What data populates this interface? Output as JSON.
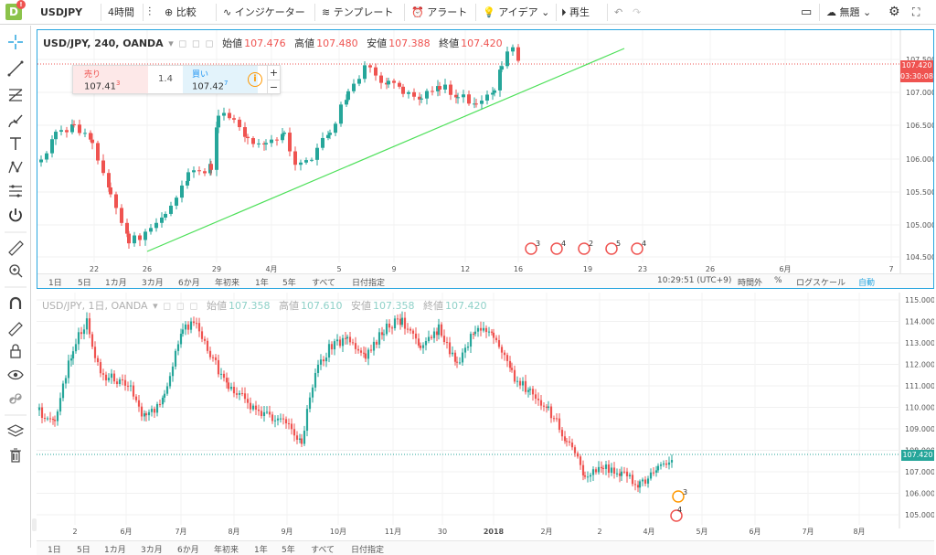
{
  "colors": {
    "up": "#26a69a",
    "down": "#ef5350",
    "accent": "#2aa6df",
    "trend": "#4ee05a",
    "price": "#ef5350",
    "price2": "#26a69a"
  },
  "topbar": {
    "logo_letter": "D",
    "logo_badge": "!",
    "symbol": "USDJPY",
    "interval": "4時間",
    "compare": "比較",
    "indicators": "インジケーター",
    "templates": "テンプレート",
    "alerts": "アラート",
    "ideas": "アイデア",
    "replay": "再生",
    "layout_name": "無題"
  },
  "sidebar": {
    "icons": [
      "crosshair-icon",
      "trendline-icon",
      "fib-icon",
      "brush-icon",
      "text-icon",
      "pattern-icon",
      "forecast-icon",
      "power-icon",
      "ruler-icon",
      "zoom-in-icon",
      "magnet-icon",
      "lock-drawing-icon",
      "lock-icon",
      "eye-icon",
      "link-icon",
      "layers-icon",
      "trash-icon"
    ]
  },
  "pane1": {
    "title": "USD/JPY, 240, OANDA",
    "ohlc": {
      "open_label": "始値",
      "open": "107.476",
      "high_label": "高値",
      "high": "107.480",
      "low_label": "安値",
      "low": "107.388",
      "close_label": "終値",
      "close": "107.420"
    },
    "trade": {
      "sell_label": "売り",
      "sell_price": "107.41",
      "sell_sup": "3",
      "spread": "1.4",
      "buy_label": "買い",
      "buy_price": "107.42",
      "buy_sup": "7"
    },
    "price_label": "107.420",
    "countdown": "03:30:08",
    "yaxis": [
      "107.500",
      "107.000",
      "106.500",
      "106.000",
      "105.500",
      "105.000",
      "104.500"
    ],
    "xaxis": [
      "22",
      "26",
      "29",
      "4月",
      "5",
      "9",
      "12",
      "16",
      "19",
      "23",
      "26",
      "6月",
      "7"
    ],
    "timeframes": [
      "1日",
      "5日",
      "1カ月",
      "3カ月",
      "6か月",
      "年初来",
      "1年",
      "5年",
      "すべて",
      "日付指定"
    ],
    "time": "10:29:51 (UTC+9)",
    "session": "時間外",
    "percent": "%",
    "log": "ログスケール",
    "auto": "自動",
    "events": [
      "3",
      "4",
      "2",
      "5",
      "4"
    ]
  },
  "pane2": {
    "title": "USD/JPY, 1日, OANDA",
    "ohlc": {
      "open_label": "始値",
      "open": "107.358",
      "high_label": "高値",
      "high": "107.610",
      "low_label": "安値",
      "low": "107.358",
      "close_label": "終値",
      "close": "107.420"
    },
    "price_label": "107.420",
    "yaxis": [
      "115.000",
      "114.000",
      "113.000",
      "112.000",
      "111.000",
      "110.000",
      "109.000",
      "108.000",
      "107.000",
      "106.000",
      "105.000"
    ],
    "xaxis": [
      "2",
      "6月",
      "7月",
      "8月",
      "9月",
      "10月",
      "11月",
      "30",
      "2018",
      "2月",
      "2",
      "4月",
      "5月",
      "6月",
      "7月",
      "8月"
    ],
    "timeframes": [
      "1日",
      "5日",
      "1カ月",
      "3カ月",
      "6か月",
      "年初来",
      "1年",
      "5年",
      "すべて",
      "日付指定"
    ],
    "events": [
      "3",
      "4"
    ]
  }
}
